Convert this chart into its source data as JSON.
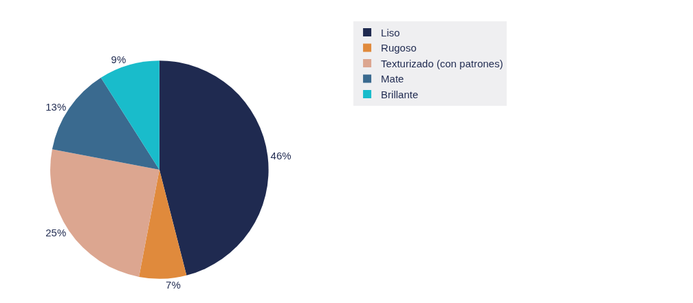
{
  "chart_data": {
    "type": "pie",
    "categories": [
      "Liso",
      "Rugoso",
      "Texturizado (con patrones)",
      "Mate",
      "Brillante"
    ],
    "values": [
      46,
      7,
      25,
      13,
      9
    ],
    "value_labels": [
      "46%",
      "7%",
      "25%",
      "13%",
      "9%"
    ],
    "colors": [
      "#1f2a50",
      "#e08a3c",
      "#dca690",
      "#3a6a8f",
      "#19bccb"
    ],
    "legend": "right"
  }
}
